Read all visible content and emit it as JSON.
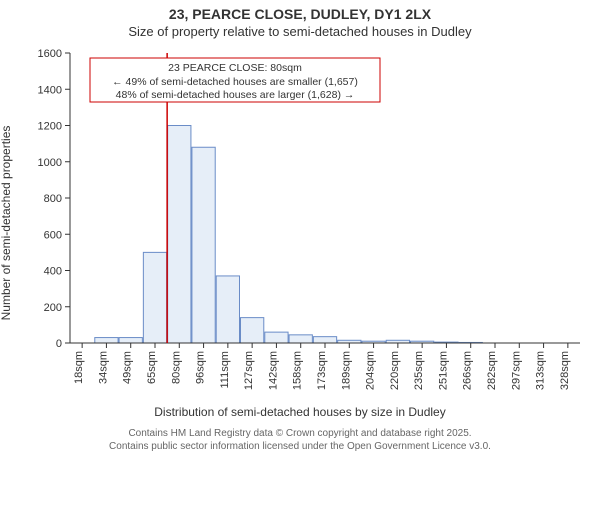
{
  "title_line1": "23, PEARCE CLOSE, DUDLEY, DY1 2LX",
  "title_line2": "Size of property relative to semi-detached houses in Dudley",
  "ylabel": "Number of semi-detached properties",
  "xlabel": "Distribution of semi-detached houses by size in Dudley",
  "footer_line1": "Contains HM Land Registry data © Crown copyright and database right 2025.",
  "footer_line2": "Contains public sector information licensed under the Open Government Licence v3.0.",
  "chart": {
    "type": "histogram",
    "background_color": "#ffffff",
    "axis_color": "#333333",
    "bar_fill": "#e6eef8",
    "bar_stroke": "#6a8cc7",
    "bar_stroke_width": 1,
    "marker_color": "#cc0000",
    "ylim": [
      0,
      1600
    ],
    "ytick_step": 200,
    "x_categories": [
      "18sqm",
      "34sqm",
      "49sqm",
      "65sqm",
      "80sqm",
      "96sqm",
      "111sqm",
      "127sqm",
      "142sqm",
      "158sqm",
      "173sqm",
      "189sqm",
      "204sqm",
      "220sqm",
      "235sqm",
      "251sqm",
      "266sqm",
      "282sqm",
      "297sqm",
      "313sqm",
      "328sqm"
    ],
    "bar_values": [
      0,
      30,
      30,
      500,
      1200,
      1080,
      370,
      140,
      60,
      45,
      35,
      15,
      10,
      15,
      10,
      5,
      3,
      2,
      1,
      1,
      0
    ],
    "marker_index": 4,
    "callout": {
      "line1": "23 PEARCE CLOSE: 80sqm",
      "line2": "← 49% of semi-detached houses are smaller (1,657)",
      "line3": "48% of semi-detached houses are larger (1,628) →",
      "border_color": "#cc0000",
      "text_fontsize": 10.5
    },
    "label_fontsize": 12,
    "tick_fontsize": 11
  }
}
